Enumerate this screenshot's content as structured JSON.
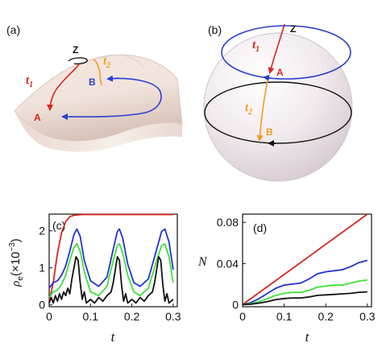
{
  "panels": {
    "a": {
      "label": "(a)",
      "points": {
        "z": "Z",
        "a": "A",
        "b": "B"
      },
      "times": {
        "t1": "t",
        "t1_sub": "1",
        "t2": "t",
        "t2_sub": "2"
      },
      "colors": {
        "t1": "#d7261e",
        "t2": "#f39a1e",
        "loop": "#2a3fd0"
      }
    },
    "b": {
      "label": "(b)",
      "points": {
        "z": "Z",
        "a": "A",
        "b": "B"
      },
      "times": {
        "t1": "t",
        "t1_sub": "1",
        "t2": "t",
        "t2_sub": "2"
      },
      "colors": {
        "t1": "#d7261e",
        "t2": "#f39a1e",
        "upper": "#2a3fd0",
        "equator": "#111111"
      }
    }
  },
  "chart_data": [
    {
      "panel_label": "(c)",
      "type": "line",
      "xlabel": "t",
      "ylabel_main": "ρ",
      "ylabel_sub": "e",
      "ylabel_unit": "(×10",
      "ylabel_exp": "−3",
      "ylabel_close": ")",
      "xlim": [
        0,
        0.31
      ],
      "ylim": [
        -0.05,
        2.45
      ],
      "xticks": [
        0,
        0.1,
        0.2,
        0.3
      ],
      "xtick_labels": [
        "0",
        "0.1",
        "0.2",
        "0.3"
      ],
      "yticks": [
        0,
        1,
        2
      ],
      "ytick_labels": [
        "0",
        "1",
        "2"
      ],
      "series": [
        {
          "color": "#d7261e",
          "x": [
            0,
            0.01,
            0.02,
            0.03,
            0.04,
            0.05,
            0.06,
            0.08,
            0.12,
            0.2,
            0.3
          ],
          "y": [
            0.1,
            0.6,
            1.4,
            1.95,
            2.25,
            2.38,
            2.42,
            2.44,
            2.44,
            2.44,
            2.44
          ]
        },
        {
          "color": "#2233cc",
          "x": [
            0,
            0.01,
            0.02,
            0.03,
            0.04,
            0.05,
            0.06,
            0.067,
            0.075,
            0.085,
            0.1,
            0.12,
            0.14,
            0.155,
            0.165,
            0.17,
            0.178,
            0.19,
            0.205,
            0.22,
            0.24,
            0.26,
            0.272,
            0.28,
            0.29,
            0.3
          ],
          "y": [
            0.45,
            0.6,
            0.65,
            0.8,
            1.05,
            1.45,
            1.9,
            2.05,
            1.85,
            1.2,
            0.65,
            0.5,
            0.75,
            1.5,
            1.98,
            2.05,
            1.8,
            1.1,
            0.6,
            0.5,
            0.7,
            1.5,
            1.98,
            2.05,
            1.7,
            0.95
          ]
        },
        {
          "color": "#3ee03a",
          "x": [
            0,
            0.01,
            0.02,
            0.03,
            0.04,
            0.05,
            0.06,
            0.067,
            0.075,
            0.085,
            0.1,
            0.12,
            0.14,
            0.155,
            0.165,
            0.17,
            0.178,
            0.19,
            0.205,
            0.22,
            0.24,
            0.26,
            0.272,
            0.28,
            0.29,
            0.3
          ],
          "y": [
            0.2,
            0.35,
            0.4,
            0.55,
            0.8,
            1.2,
            1.55,
            1.65,
            1.45,
            0.9,
            0.35,
            0.25,
            0.5,
            1.2,
            1.6,
            1.65,
            1.4,
            0.8,
            0.35,
            0.25,
            0.45,
            1.2,
            1.6,
            1.65,
            1.3,
            0.6
          ]
        },
        {
          "color": "#111111",
          "x": [
            0,
            0.005,
            0.01,
            0.015,
            0.02,
            0.025,
            0.03,
            0.035,
            0.04,
            0.045,
            0.05,
            0.055,
            0.06,
            0.065,
            0.07,
            0.075,
            0.08,
            0.085,
            0.09,
            0.1,
            0.11,
            0.12,
            0.13,
            0.14,
            0.15,
            0.155,
            0.16,
            0.165,
            0.17,
            0.175,
            0.18,
            0.185,
            0.19,
            0.2,
            0.21,
            0.22,
            0.23,
            0.24,
            0.25,
            0.255,
            0.26,
            0.265,
            0.27,
            0.275,
            0.28,
            0.285,
            0.29,
            0.3
          ],
          "y": [
            0.05,
            0.2,
            0.05,
            0.25,
            0.1,
            0.3,
            0.15,
            0.35,
            0.25,
            0.45,
            0.3,
            0.7,
            1.0,
            1.3,
            1.2,
            0.6,
            0.15,
            0.35,
            0.05,
            0.15,
            0.05,
            0.2,
            0.1,
            0.25,
            0.35,
            0.6,
            0.95,
            1.3,
            1.2,
            0.55,
            0.1,
            0.3,
            0.05,
            0.15,
            0.05,
            0.2,
            0.1,
            0.25,
            0.35,
            0.6,
            0.95,
            1.3,
            1.2,
            0.55,
            0.1,
            0.3,
            0.05,
            0.15
          ]
        }
      ]
    },
    {
      "panel_label": "(d)",
      "type": "line",
      "xlabel": "t",
      "ylabel": "N",
      "xlim": [
        0,
        0.31
      ],
      "ylim": [
        -0.002,
        0.088
      ],
      "xticks": [
        0,
        0.1,
        0.2,
        0.3
      ],
      "xtick_labels": [
        "0",
        "0.1",
        "0.2",
        "0.3"
      ],
      "yticks": [
        0,
        0.04,
        0.08
      ],
      "ytick_labels": [
        "0",
        "0.04",
        "0.08"
      ],
      "series": [
        {
          "color": "#d7261e",
          "x": [
            0,
            0.3
          ],
          "y": [
            0,
            0.088
          ]
        },
        {
          "color": "#2233cc",
          "x": [
            0,
            0.02,
            0.04,
            0.06,
            0.08,
            0.1,
            0.12,
            0.14,
            0.16,
            0.18,
            0.2,
            0.22,
            0.24,
            0.26,
            0.28,
            0.3
          ],
          "y": [
            0,
            0.002,
            0.006,
            0.011,
            0.016,
            0.019,
            0.02,
            0.021,
            0.025,
            0.03,
            0.032,
            0.033,
            0.034,
            0.037,
            0.041,
            0.043
          ]
        },
        {
          "color": "#3ee03a",
          "x": [
            0,
            0.02,
            0.04,
            0.06,
            0.08,
            0.1,
            0.12,
            0.14,
            0.16,
            0.18,
            0.2,
            0.22,
            0.24,
            0.26,
            0.28,
            0.3
          ],
          "y": [
            0,
            0.001,
            0.003,
            0.006,
            0.009,
            0.011,
            0.012,
            0.012,
            0.014,
            0.017,
            0.018,
            0.019,
            0.019,
            0.021,
            0.023,
            0.024
          ]
        },
        {
          "color": "#111111",
          "x": [
            0,
            0.02,
            0.04,
            0.06,
            0.08,
            0.1,
            0.12,
            0.14,
            0.16,
            0.18,
            0.2,
            0.22,
            0.24,
            0.26,
            0.28,
            0.3
          ],
          "y": [
            0,
            0.0005,
            0.0015,
            0.003,
            0.005,
            0.006,
            0.0065,
            0.0065,
            0.0075,
            0.009,
            0.0095,
            0.01,
            0.0105,
            0.011,
            0.012,
            0.0125
          ]
        }
      ]
    }
  ]
}
